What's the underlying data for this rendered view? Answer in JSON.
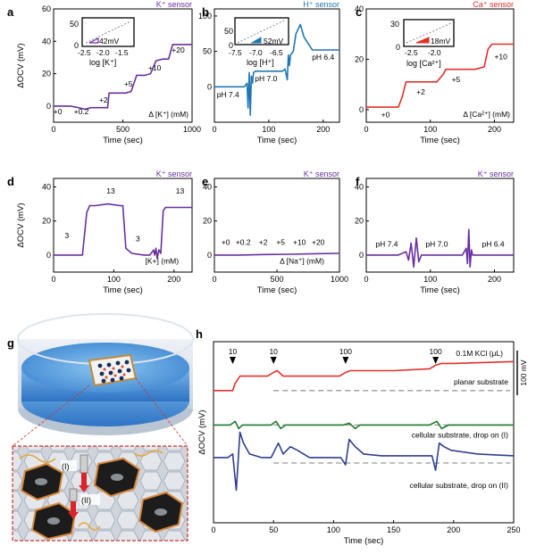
{
  "colors": {
    "purple": "#6a2fa2",
    "blue": "#1f77b4",
    "red": "#e0302a",
    "green": "#1f7a2e",
    "navy": "#2e3f8f",
    "grey": "#999999",
    "axis": "#000000"
  },
  "chart_data": [
    {
      "id": "a",
      "panel_label": "a",
      "type": "line",
      "title": "K⁺ sensor",
      "title_color": "#6a2fa2",
      "xlabel": "Time (sec)",
      "ylabel": "ΔOCV (mV)",
      "xlim": [
        0,
        1000
      ],
      "ylim": [
        -10,
        60
      ],
      "xticks": [
        "0",
        "500",
        "1000"
      ],
      "yticks": [
        "0",
        "20",
        "40",
        "60"
      ],
      "series": [
        {
          "color": "#6a2fa2",
          "x": [
            0,
            60,
            120,
            180,
            230,
            270,
            320,
            390,
            400,
            460,
            520,
            560,
            600,
            660,
            700,
            740,
            790,
            830,
            860,
            920,
            980,
            1000
          ],
          "y": [
            0,
            0,
            0,
            -1,
            -2,
            -1,
            -1,
            -1,
            8,
            8,
            8,
            9,
            19,
            19,
            20,
            28,
            29,
            29,
            38,
            38,
            38,
            38
          ]
        }
      ],
      "step_labels": [
        {
          "x": 30,
          "y": -5,
          "text": "+0"
        },
        {
          "x": 200,
          "y": -5,
          "text": "+0.2"
        },
        {
          "x": 360,
          "y": 2,
          "text": "+2"
        },
        {
          "x": 540,
          "y": 12,
          "text": "+5"
        },
        {
          "x": 730,
          "y": 22,
          "text": "+10"
        },
        {
          "x": 900,
          "y": 33,
          "text": "+20"
        }
      ],
      "annotation": "Δ [K⁺] (mM)",
      "inset": {
        "xlabel": "log [K⁺]",
        "xticks": [
          "-2.5",
          "-2.0",
          "-1.5"
        ],
        "yticks": [
          "0",
          "50"
        ],
        "slope_label": "42mV"
      }
    },
    {
      "id": "b",
      "panel_label": "b",
      "type": "line",
      "title": "H⁺ sensor",
      "title_color": "#1f77b4",
      "xlabel": "Time (sec)",
      "ylabel": "",
      "xlim": [
        0,
        230
      ],
      "ylim": [
        -50,
        110
      ],
      "xticks": [
        "0",
        "100",
        "200"
      ],
      "yticks": [
        "0",
        "50",
        "100"
      ],
      "series": [
        {
          "color": "#1f77b4",
          "x": [
            0,
            40,
            55,
            60,
            62,
            64,
            66,
            68,
            70,
            72,
            75,
            80,
            100,
            125,
            130,
            134,
            136,
            138,
            140,
            145,
            150,
            158,
            165,
            180,
            230
          ],
          "y": [
            0,
            0,
            0,
            5,
            -30,
            20,
            -40,
            15,
            5,
            20,
            22,
            22,
            22,
            22,
            25,
            10,
            45,
            30,
            45,
            50,
            75,
            88,
            70,
            52,
            52
          ]
        }
      ],
      "text_labels": [
        {
          "x": 25,
          "y": -15,
          "text": "pH 7.4"
        },
        {
          "x": 95,
          "y": 8,
          "text": "pH 7.0"
        },
        {
          "x": 200,
          "y": 38,
          "text": "pH 6.4"
        }
      ],
      "inset": {
        "xlabel": "log [H⁺]",
        "xticks": [
          "-7.5",
          "-7.0",
          "-6.5"
        ],
        "yticks": [
          "0",
          "50"
        ],
        "slope_label": "52mV"
      }
    },
    {
      "id": "c",
      "panel_label": "c",
      "type": "line",
      "title": "Ca⁺ sensor",
      "title_color": "#e0302a",
      "xlabel": "Time (sec)",
      "ylabel": "",
      "xlim": [
        0,
        230
      ],
      "ylim": [
        -5,
        40
      ],
      "xticks": [
        "0",
        "100",
        "200"
      ],
      "yticks": [
        "0",
        "20",
        "40"
      ],
      "series": [
        {
          "color": "#e0302a",
          "x": [
            0,
            20,
            50,
            56,
            62,
            70,
            90,
            110,
            120,
            124,
            130,
            150,
            170,
            184,
            190,
            196,
            205,
            230
          ],
          "y": [
            1,
            1,
            1,
            5,
            11,
            11,
            11,
            11,
            14,
            16,
            16,
            16,
            16,
            17,
            24,
            26,
            26,
            26
          ]
        }
      ],
      "step_labels": [
        {
          "x": 30,
          "y": -3,
          "text": "+0"
        },
        {
          "x": 85,
          "y": 6,
          "text": "+2"
        },
        {
          "x": 140,
          "y": 11,
          "text": "+5"
        },
        {
          "x": 210,
          "y": 20,
          "text": "+10"
        }
      ],
      "annotation": "Δ [Ca²⁺] (mM)",
      "inset": {
        "xlabel": "log [Ca²⁺]",
        "xticks": [
          "-2.5",
          "-2.0"
        ],
        "yticks": [
          "0",
          "30"
        ],
        "slope_label": "18mV"
      }
    },
    {
      "id": "d",
      "panel_label": "d",
      "type": "line",
      "title": "K⁺ sensor",
      "title_color": "#6a2fa2",
      "xlabel": "Time (sec)",
      "ylabel": "ΔOCV (mV)",
      "xlim": [
        0,
        230
      ],
      "ylim": [
        -10,
        45
      ],
      "xticks": [
        "0",
        "100",
        "200"
      ],
      "yticks": [
        "0",
        "20",
        "40"
      ],
      "series": [
        {
          "color": "#6a2fa2",
          "x": [
            0,
            40,
            48,
            55,
            60,
            70,
            90,
            110,
            115,
            120,
            130,
            150,
            160,
            166,
            168,
            170,
            172,
            175,
            178,
            182,
            186,
            200,
            230
          ],
          "y": [
            0,
            0,
            0,
            25,
            29,
            29,
            30,
            29,
            29,
            4,
            1,
            0,
            0,
            3,
            0,
            4,
            -2,
            3,
            1,
            26,
            28,
            28,
            28
          ]
        }
      ],
      "text_labels": [
        {
          "x": 22,
          "y": 10,
          "text": "3"
        },
        {
          "x": 95,
          "y": 36,
          "text": "13"
        },
        {
          "x": 140,
          "y": 8,
          "text": "3"
        },
        {
          "x": 210,
          "y": 36,
          "text": "13"
        },
        {
          "x": 180,
          "y": -5,
          "text": "[K+] (mM)"
        }
      ]
    },
    {
      "id": "e",
      "panel_label": "e",
      "type": "line",
      "title": "K⁺ sensor",
      "title_color": "#6a2fa2",
      "xlabel": "Time (sec)",
      "ylabel": "",
      "xlim": [
        0,
        1000
      ],
      "ylim": [
        -10,
        45
      ],
      "xticks": [
        "0",
        "500",
        "1000"
      ],
      "yticks": [
        "0",
        "20",
        "40"
      ],
      "series": [
        {
          "color": "#6a2fa2",
          "x": [
            0,
            200,
            400,
            600,
            800,
            1000
          ],
          "y": [
            0,
            0,
            0.3,
            0.5,
            0.8,
            1
          ]
        }
      ],
      "text_labels": [
        {
          "x": 90,
          "y": 6,
          "text": "+0"
        },
        {
          "x": 230,
          "y": 6,
          "text": "+0.2"
        },
        {
          "x": 390,
          "y": 6,
          "text": "+2"
        },
        {
          "x": 530,
          "y": 6,
          "text": "+5"
        },
        {
          "x": 680,
          "y": 6,
          "text": "+10"
        },
        {
          "x": 830,
          "y": 6,
          "text": "+20"
        },
        {
          "x": 700,
          "y": -5,
          "text": "Δ [Na⁺] (mM)"
        }
      ]
    },
    {
      "id": "f",
      "panel_label": "f",
      "type": "line",
      "title": "K⁺ sensor",
      "title_color": "#6a2fa2",
      "xlabel": "Time (sec)",
      "ylabel": "",
      "xlim": [
        0,
        230
      ],
      "ylim": [
        -10,
        45
      ],
      "xticks": [
        "0",
        "100",
        "200"
      ],
      "yticks": [
        "0",
        "20",
        "40"
      ],
      "series": [
        {
          "color": "#6a2fa2",
          "x": [
            0,
            50,
            62,
            66,
            70,
            74,
            78,
            82,
            86,
            100,
            150,
            156,
            158,
            160,
            162,
            164,
            166,
            170,
            230
          ],
          "y": [
            0,
            0,
            2,
            -3,
            7,
            -7,
            10,
            -4,
            0,
            0,
            0,
            4,
            -5,
            15,
            -7,
            3,
            0,
            0,
            0
          ]
        }
      ],
      "text_labels": [
        {
          "x": 32,
          "y": 5,
          "text": "pH 7.4"
        },
        {
          "x": 110,
          "y": 5,
          "text": "pH 7.0"
        },
        {
          "x": 198,
          "y": 5,
          "text": "pH 6.4"
        }
      ]
    },
    {
      "id": "h",
      "panel_label": "h",
      "type": "line",
      "title": "",
      "xlabel": "Time (sec)",
      "ylabel": "ΔOCV (mV)",
      "xlim": [
        0,
        250
      ],
      "ylim": [
        0,
        1
      ],
      "xticks": [
        "0",
        "50",
        "100",
        "150",
        "200",
        "250"
      ],
      "legend_text": "0.1M KCl (μL)",
      "scalebar_label": "100 mV",
      "arrows": [
        {
          "x": 16,
          "text": "10"
        },
        {
          "x": 50,
          "text": "10"
        },
        {
          "x": 110,
          "text": "100"
        },
        {
          "x": 185,
          "text": "100"
        }
      ],
      "series": [
        {
          "name": "planar substrate",
          "color": "#e0302a",
          "baseline": 0.27,
          "x": [
            0,
            10,
            16,
            18,
            22,
            30,
            45,
            50,
            53,
            58,
            70,
            105,
            110,
            114,
            120,
            150,
            180,
            185,
            190,
            200,
            250
          ],
          "y": [
            0.27,
            0.27,
            0.27,
            0.23,
            0.19,
            0.19,
            0.19,
            0.17,
            0.16,
            0.19,
            0.19,
            0.19,
            0.17,
            0.16,
            0.16,
            0.16,
            0.15,
            0.13,
            0.12,
            0.12,
            0.11
          ]
        },
        {
          "name": "cellular substrate, drop on (I)",
          "color": "#1f7a2e",
          "baseline": 0.46,
          "x": [
            0,
            14,
            18,
            21,
            24,
            30,
            48,
            52,
            56,
            60,
            108,
            113,
            118,
            122,
            180,
            186,
            190,
            196,
            250
          ],
          "y": [
            0.46,
            0.46,
            0.44,
            0.48,
            0.46,
            0.46,
            0.46,
            0.44,
            0.48,
            0.46,
            0.46,
            0.45,
            0.48,
            0.46,
            0.46,
            0.44,
            0.48,
            0.46,
            0.46
          ]
        },
        {
          "name": "cellular substrate, drop on (II)",
          "color": "#2e3f8f",
          "baseline": 0.67,
          "x": [
            0,
            12,
            16,
            19,
            22,
            25,
            30,
            40,
            48,
            51,
            54,
            58,
            64,
            70,
            80,
            106,
            110,
            113,
            118,
            125,
            140,
            182,
            185,
            188,
            192,
            198,
            220,
            250
          ],
          "y": [
            0.64,
            0.64,
            0.62,
            0.82,
            0.5,
            0.56,
            0.62,
            0.64,
            0.64,
            0.6,
            0.56,
            0.62,
            0.58,
            0.6,
            0.64,
            0.64,
            0.68,
            0.54,
            0.58,
            0.62,
            0.63,
            0.63,
            0.71,
            0.56,
            0.58,
            0.6,
            0.62,
            0.63
          ]
        }
      ]
    }
  ],
  "panel_g": {
    "panel_label": "g",
    "inset_labels": [
      "(I)",
      "(II)"
    ]
  }
}
